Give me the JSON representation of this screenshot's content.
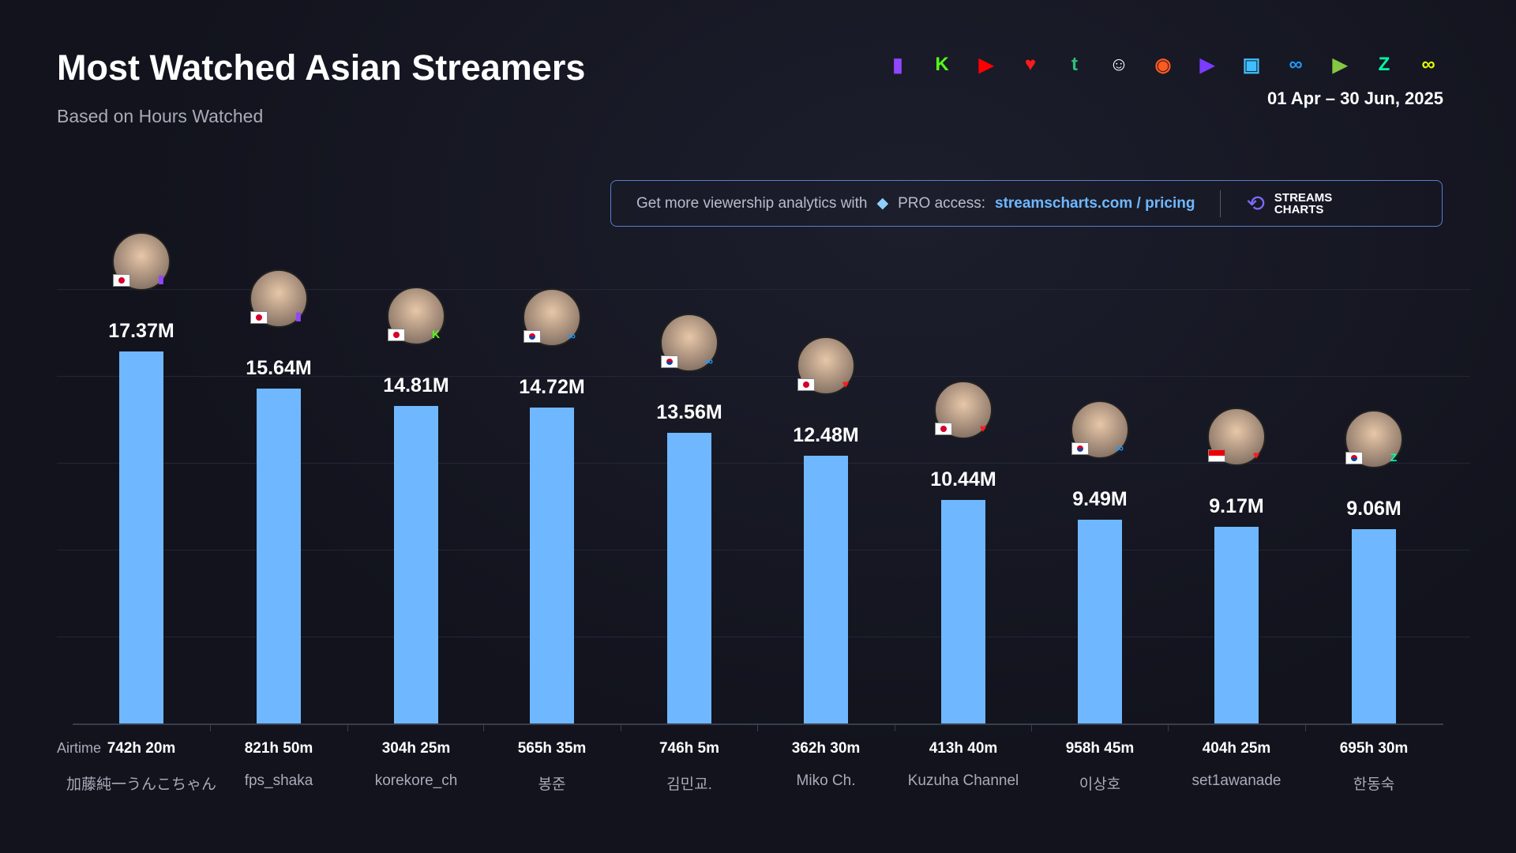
{
  "header": {
    "title": "Most Watched Asian Streamers",
    "subtitle": "Based on Hours Watched",
    "date_range": "01 Apr – 30 Jun, 2025"
  },
  "platform_icons": [
    {
      "name": "twitch-icon",
      "color": "#9146ff",
      "glyph": "▮"
    },
    {
      "name": "kick-icon",
      "color": "#53fc18",
      "glyph": "K"
    },
    {
      "name": "youtube-icon",
      "color": "#ff0000",
      "glyph": "▶"
    },
    {
      "name": "heart-play-icon",
      "color": "#ff1a1a",
      "glyph": "♥"
    },
    {
      "name": "trovo-icon",
      "color": "#2fbf7d",
      "glyph": "t"
    },
    {
      "name": "bigo-icon",
      "color": "#ffffff",
      "glyph": "☺"
    },
    {
      "name": "nimo-icon",
      "color": "#ff5a1f",
      "glyph": "◉"
    },
    {
      "name": "purple-tv-icon",
      "color": "#7b3cff",
      "glyph": "▶"
    },
    {
      "name": "camera-icon",
      "color": "#3fbfff",
      "glyph": "▣"
    },
    {
      "name": "soop-icon",
      "color": "#1e9bff",
      "glyph": "∞"
    },
    {
      "name": "rumble-icon",
      "color": "#85c742",
      "glyph": "▶"
    },
    {
      "name": "chzzk-icon",
      "color": "#00ffa3",
      "glyph": "Z"
    },
    {
      "name": "infinity-yellow-icon",
      "color": "#e5ff00",
      "glyph": "∞"
    }
  ],
  "promo": {
    "text": "Get more viewership analytics with",
    "pro": "PRO access:",
    "link": "streamscharts.com / pricing",
    "logo": "STREAMS CHARTS"
  },
  "chart_data": {
    "type": "bar",
    "title": "Most Watched Asian Streamers",
    "subtitle": "Based on Hours Watched",
    "unit": "M hours watched",
    "ylim": [
      0,
      17.37
    ],
    "airtime_label": "Airtime",
    "categories": [
      "加藤純一うんこちゃん",
      "fps_shaka",
      "korekore_ch",
      "봉준",
      "김민교.",
      "Miko Ch.",
      "Kuzuha Channel",
      "이상호",
      "set1awanade",
      "한동숙"
    ],
    "values": [
      17.37,
      15.64,
      14.81,
      14.72,
      13.56,
      12.48,
      10.44,
      9.49,
      9.17,
      9.06
    ],
    "value_labels": [
      "17.37M",
      "15.64M",
      "14.81M",
      "14.72M",
      "13.56M",
      "12.48M",
      "10.44M",
      "9.49M",
      "9.17M",
      "9.06M"
    ],
    "airtime": [
      "742h 20m",
      "821h 50m",
      "304h 25m",
      "565h 35m",
      "746h 5m",
      "362h 30m",
      "413h 40m",
      "958h 45m",
      "404h 25m",
      "695h 30m"
    ],
    "countries": [
      "jp",
      "jp",
      "jp",
      "kr",
      "kr",
      "jp",
      "jp",
      "kr",
      "id",
      "kr"
    ],
    "platforms": [
      "twitch",
      "twitch",
      "kick",
      "soop",
      "soop",
      "heart-play",
      "heart-play",
      "soop",
      "heart-play",
      "chzzk"
    ],
    "bar_color": "#6fb8ff"
  }
}
